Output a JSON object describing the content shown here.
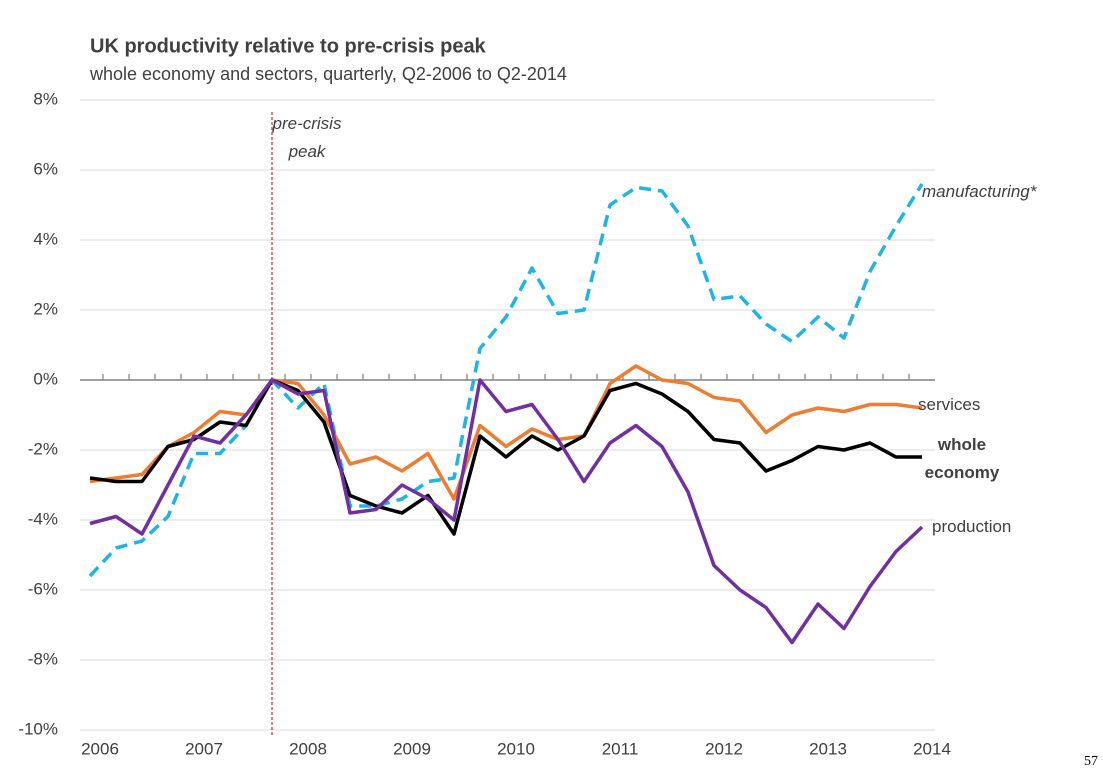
{
  "chart_data": {
    "type": "line",
    "title": "UK productivity relative to pre-crisis peak",
    "subtitle": "whole economy and sectors, quarterly, Q2-2006 to Q2-2014",
    "categories": [
      "2006",
      null,
      null,
      null,
      "2007",
      null,
      null,
      null,
      "2008",
      null,
      null,
      null,
      "2009",
      null,
      null,
      null,
      "2010",
      null,
      null,
      null,
      "2011",
      null,
      null,
      null,
      "2012",
      null,
      null,
      null,
      "2013",
      null,
      null,
      null,
      "2014"
    ],
    "series": [
      {
        "name": "manufacturing*",
        "color": "#1fb4e6",
        "dashed": true,
        "values": [
          -5.6,
          -4.8,
          -4.6,
          -3.9,
          -2.1,
          -2.1,
          -1.3,
          0,
          -0.8,
          -0.1,
          -3.6,
          -3.6,
          -3.4,
          -2.9,
          -2.8,
          0.9,
          1.8,
          3.2,
          1.9,
          2.0,
          5.0,
          5.5,
          5.4,
          4.4,
          2.3,
          2.4,
          1.6,
          1.1,
          1.8,
          1.2,
          3.1,
          4.4,
          5.6
        ]
      },
      {
        "name": "services",
        "color": "#ed7d31",
        "values": [
          -2.9,
          -2.8,
          -2.7,
          -1.9,
          -1.5,
          -0.9,
          -1.0,
          0,
          -0.1,
          -1.0,
          -2.4,
          -2.2,
          -2.6,
          -2.1,
          -3.4,
          -1.3,
          -1.9,
          -1.4,
          -1.7,
          -1.6,
          -0.1,
          0.4,
          0,
          -0.1,
          -0.5,
          -0.6,
          -1.5,
          -1.0,
          -0.8,
          -0.9,
          -0.7,
          -0.7,
          -0.8
        ]
      },
      {
        "name": "whole economy",
        "color": "#000000",
        "values": [
          -2.8,
          -2.9,
          -2.9,
          -1.9,
          -1.7,
          -1.2,
          -1.3,
          0,
          -0.3,
          -1.2,
          -3.3,
          -3.6,
          -3.8,
          -3.3,
          -4.4,
          -1.6,
          -2.2,
          -1.6,
          -2.0,
          -1.6,
          -0.3,
          -0.1,
          -0.4,
          -0.9,
          -1.7,
          -1.8,
          -2.6,
          -2.3,
          -1.9,
          -2.0,
          -1.8,
          -2.2,
          -2.2
        ]
      },
      {
        "name": "production",
        "color": "#7030a0",
        "values": [
          -4.1,
          -3.9,
          -4.4,
          -3.0,
          -1.6,
          -1.8,
          -1.0,
          0,
          -0.4,
          -0.3,
          -3.8,
          -3.7,
          -3.0,
          -3.4,
          -4.0,
          0,
          -0.9,
          -0.7,
          -1.7,
          -2.9,
          -1.8,
          -1.3,
          -1.9,
          -3.2,
          -5.3,
          -6.0,
          -6.5,
          -7.5,
          -6.4,
          -7.1,
          -5.9,
          -4.9,
          -4.2
        ]
      }
    ],
    "ylim": [
      -10,
      8
    ],
    "yticks": [
      {
        "value": -10,
        "label": "-10%"
      },
      {
        "value": -8,
        "label": "-8%"
      },
      {
        "value": -6,
        "label": "-6%"
      },
      {
        "value": -4,
        "label": "-4%"
      },
      {
        "value": -2,
        "label": "-2%"
      },
      {
        "value": 0,
        "label": "0%"
      },
      {
        "value": 2,
        "label": "2%"
      },
      {
        "value": 4,
        "label": "4%"
      },
      {
        "value": 6,
        "label": "6%"
      },
      {
        "value": 8,
        "label": "8%"
      }
    ],
    "grid": true,
    "annotation": {
      "text": "pre-crisis peak",
      "index": 7
    },
    "page_number": "57"
  }
}
